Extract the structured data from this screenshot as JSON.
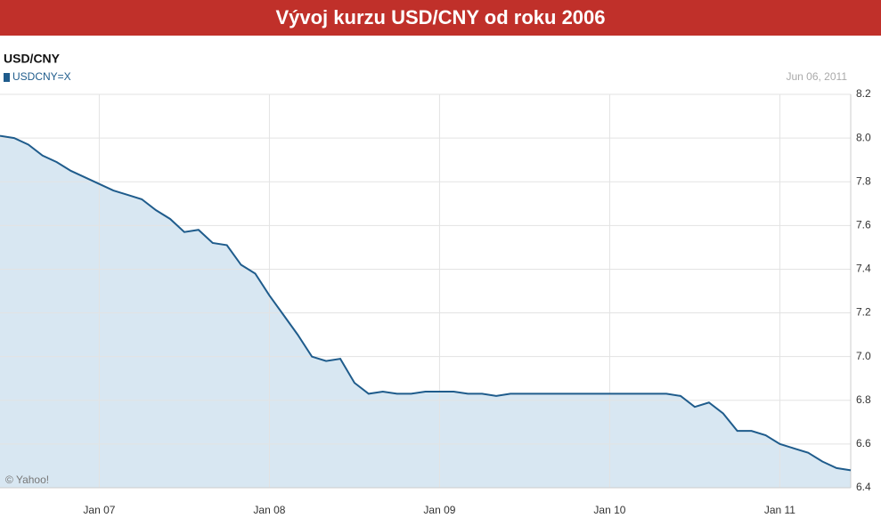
{
  "header": {
    "title": "Vývoj kurzu USD/CNY od roku 2006"
  },
  "chart_data": {
    "type": "line",
    "title": "USD/CNY",
    "date_label": "Jun 06, 2011",
    "credit": "© Yahoo!",
    "categories": [
      null,
      null,
      null,
      null,
      null,
      null,
      null,
      "Jan 07",
      null,
      null,
      null,
      null,
      null,
      null,
      null,
      null,
      null,
      null,
      null,
      "Jan 08",
      null,
      null,
      null,
      null,
      null,
      null,
      null,
      null,
      null,
      null,
      null,
      "Jan 09",
      null,
      null,
      null,
      null,
      null,
      null,
      null,
      null,
      null,
      null,
      null,
      "Jan 10",
      null,
      null,
      null,
      null,
      null,
      null,
      null,
      null,
      null,
      null,
      null,
      "Jan 11",
      null,
      null,
      null,
      null,
      null
    ],
    "series": [
      {
        "name": "USDCNY=X",
        "color": "#1f5c8c",
        "fill": "#d8e7f2",
        "values": [
          8.01,
          8.0,
          7.97,
          7.92,
          7.89,
          7.85,
          7.82,
          7.79,
          7.76,
          7.74,
          7.72,
          7.67,
          7.63,
          7.57,
          7.58,
          7.52,
          7.51,
          7.42,
          7.38,
          7.28,
          7.19,
          7.1,
          7.0,
          6.98,
          6.99,
          6.88,
          6.83,
          6.84,
          6.83,
          6.83,
          6.84,
          6.84,
          6.84,
          6.83,
          6.83,
          6.82,
          6.83,
          6.83,
          6.83,
          6.83,
          6.83,
          6.83,
          6.83,
          6.83,
          6.83,
          6.83,
          6.83,
          6.83,
          6.82,
          6.77,
          6.79,
          6.74,
          6.66,
          6.66,
          6.64,
          6.6,
          6.58,
          6.56,
          6.52,
          6.49,
          6.48
        ]
      }
    ],
    "ylim": [
      6.4,
      8.2
    ],
    "yticks": [
      6.4,
      6.6,
      6.8,
      {
        "value": 7.0,
        "label": "7.0"
      },
      7.2,
      7.4,
      7.6,
      7.8,
      {
        "value": 8.0,
        "label": "8.0"
      },
      8.2
    ],
    "grid": true
  }
}
